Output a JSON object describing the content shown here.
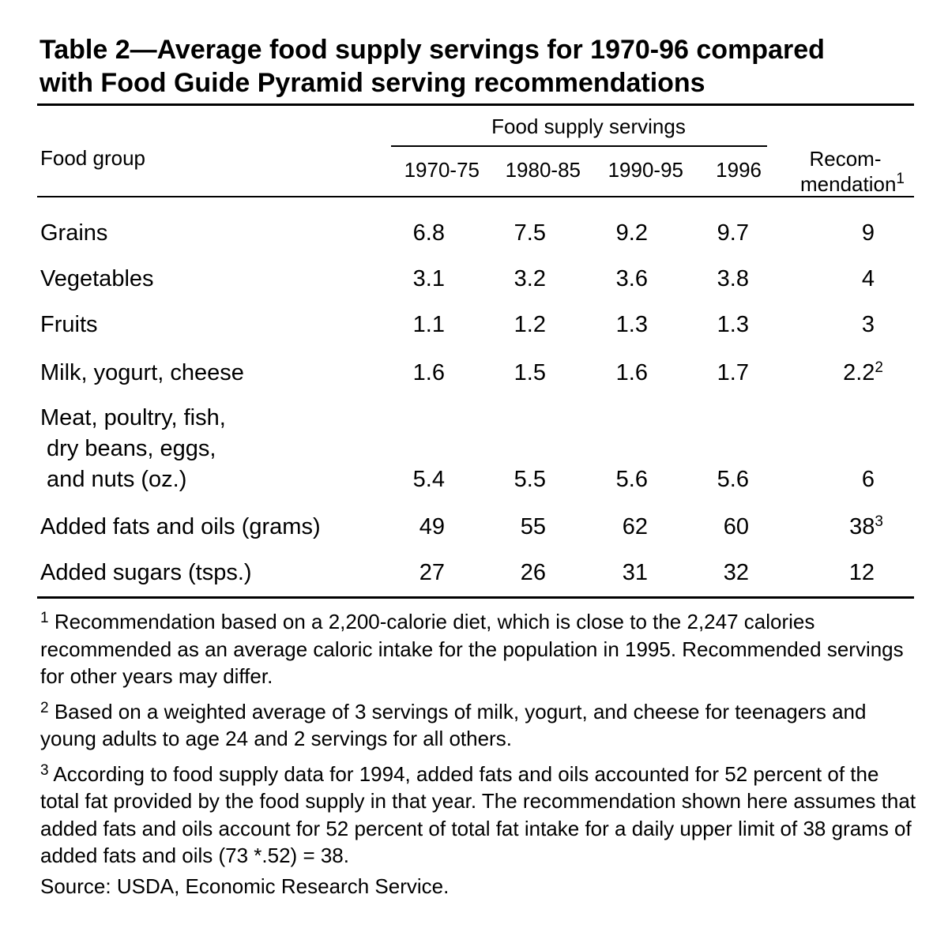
{
  "title_lines": [
    "Table 2—Average food supply servings for 1970-96 compared",
    "with Food Guide Pyramid serving recommendations"
  ],
  "header": {
    "food_group": "Food group",
    "supply_group": "Food supply servings",
    "periods": [
      "1970-75",
      "1980-85",
      "1990-95",
      "1996"
    ],
    "recommendation_line1": "Recom-",
    "recommendation_line2": "mendation",
    "recommendation_mark": "1"
  },
  "rows": [
    {
      "label_lines": [
        "Grains"
      ],
      "values": [
        "6.8",
        "7.5",
        "9.2",
        "9.7"
      ],
      "rec": "9",
      "rec_mark": ""
    },
    {
      "label_lines": [
        "Vegetables"
      ],
      "values": [
        "3.1",
        "3.2",
        "3.6",
        "3.8"
      ],
      "rec": "4",
      "rec_mark": ""
    },
    {
      "label_lines": [
        "Fruits"
      ],
      "values": [
        "1.1",
        "1.2",
        "1.3",
        "1.3"
      ],
      "rec": "3",
      "rec_mark": ""
    },
    {
      "label_lines": [
        "Milk, yogurt, cheese"
      ],
      "values": [
        "1.6",
        "1.5",
        "1.6",
        "1.7"
      ],
      "rec": "2.2",
      "rec_mark": "2"
    },
    {
      "label_lines": [
        "Meat, poultry, fish,",
        " dry beans, eggs,",
        " and nuts (oz.)"
      ],
      "values": [
        "5.4",
        "5.5",
        "5.6",
        "5.6"
      ],
      "rec": "6",
      "rec_mark": ""
    },
    {
      "label_lines": [
        "Added fats and oils (grams)"
      ],
      "values": [
        "49",
        "55",
        "62",
        "60"
      ],
      "rec": "38",
      "rec_mark": "3"
    },
    {
      "label_lines": [
        "Added sugars (tsps.)"
      ],
      "values": [
        "27",
        "26",
        "31",
        "32"
      ],
      "rec": "12",
      "rec_mark": ""
    }
  ],
  "footnotes": [
    {
      "mark": "1",
      "text": "Recommendation based on a 2,200-calorie diet, which is close to the 2,247 calories recommended as an average caloric intake for the population in 1995.  Recommended servings for other years may differ."
    },
    {
      "mark": "2",
      "text": "Based on a weighted average of 3 servings of milk, yogurt, and cheese for teenagers and young adults to age 24 and 2 servings for all others."
    },
    {
      "mark": "3",
      "text": "According to food supply data for 1994, added fats and oils accounted for 52 percent of the total fat provided by the food supply in that year.  The recommendation shown here assumes that added fats and oils account for 52 percent of total fat intake for a daily upper limit of 38 grams of added fats and oils (73 *.52) = 38."
    }
  ],
  "source": "Source: USDA, Economic Research Service."
}
